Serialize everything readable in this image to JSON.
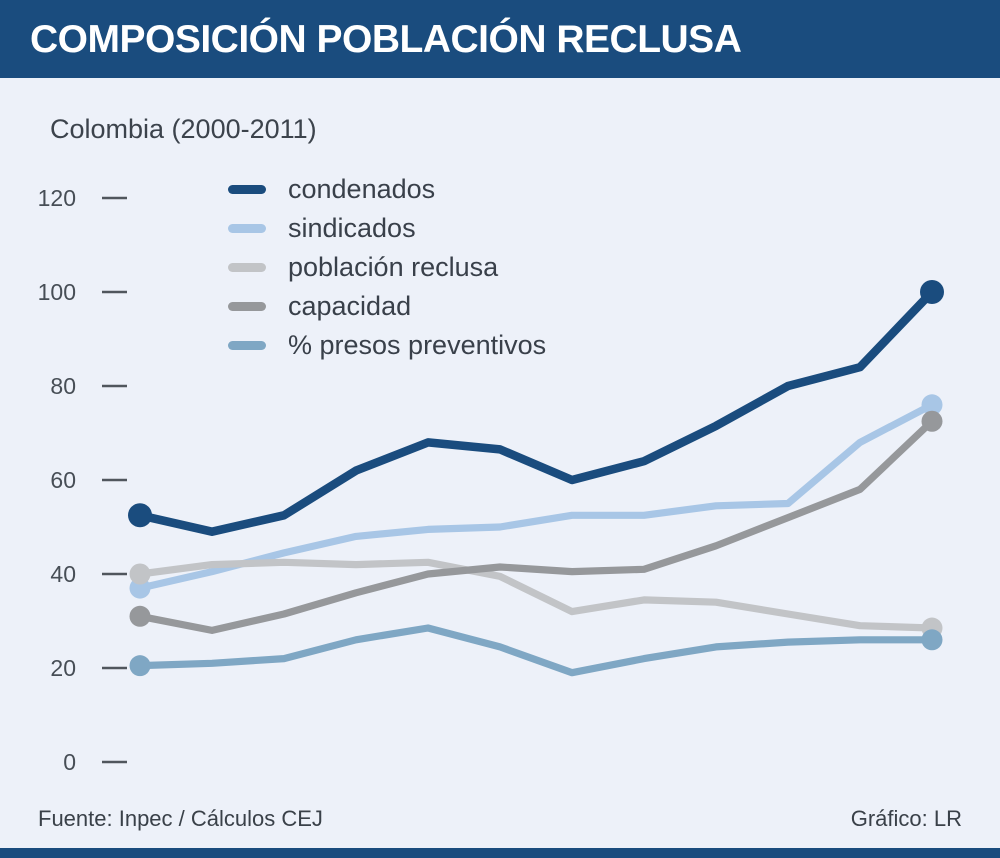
{
  "header": {
    "title": "COMPOSICIÓN POBLACIÓN RECLUSA"
  },
  "subtitle": "Colombia (2000-2011)",
  "footer": {
    "source": "Fuente: Inpec / Cálculos CEJ",
    "credit": "Gráfico: LR"
  },
  "colors": {
    "banner": "#1A4C7E",
    "panel_bg": "#EDF1F9",
    "page_bg": "#FFFFFF",
    "tick": "#50565D",
    "axis_text": "#474E56",
    "legend_text": "#39404A"
  },
  "chart_data": {
    "type": "line",
    "title": "COMPOSICIÓN POBLACIÓN RECLUSA",
    "subtitle": "Colombia (2000-2011)",
    "x": [
      2000,
      2001,
      2002,
      2003,
      2004,
      2005,
      2006,
      2007,
      2008,
      2009,
      2010,
      2011
    ],
    "x_axis_labels_visible": false,
    "yticks": [
      0,
      20,
      40,
      60,
      80,
      100,
      120
    ],
    "ylim": [
      0,
      125
    ],
    "grid": false,
    "legend_position": "top-left-inside",
    "endpoint_dots": true,
    "series": [
      {
        "name": "condenados",
        "color": "#1A4C7E",
        "values": [
          52.5,
          49,
          52.5,
          62,
          68,
          66.5,
          60,
          64,
          71.5,
          80,
          84,
          100
        ]
      },
      {
        "name": "sindicados",
        "color": "#A8C6E6",
        "values": [
          37,
          40.5,
          44.5,
          48,
          49.5,
          50,
          52.5,
          52.5,
          54.5,
          55,
          68,
          76
        ]
      },
      {
        "name": "población reclusa",
        "color": "#C2C4C7",
        "values": [
          40,
          42,
          42.5,
          42,
          42.5,
          39.5,
          32,
          34.5,
          34,
          31.5,
          29,
          28.5
        ]
      },
      {
        "name": "capacidad",
        "color": "#96989B",
        "values": [
          31,
          28,
          31.5,
          36,
          40,
          41.5,
          40.5,
          41,
          46,
          52,
          58,
          72.5
        ]
      },
      {
        "name": "% presos preventivos",
        "color": "#7FA7C4",
        "values": [
          20.5,
          21,
          22,
          26,
          28.5,
          24.5,
          19,
          22,
          24.5,
          25.5,
          26,
          26
        ]
      }
    ]
  }
}
